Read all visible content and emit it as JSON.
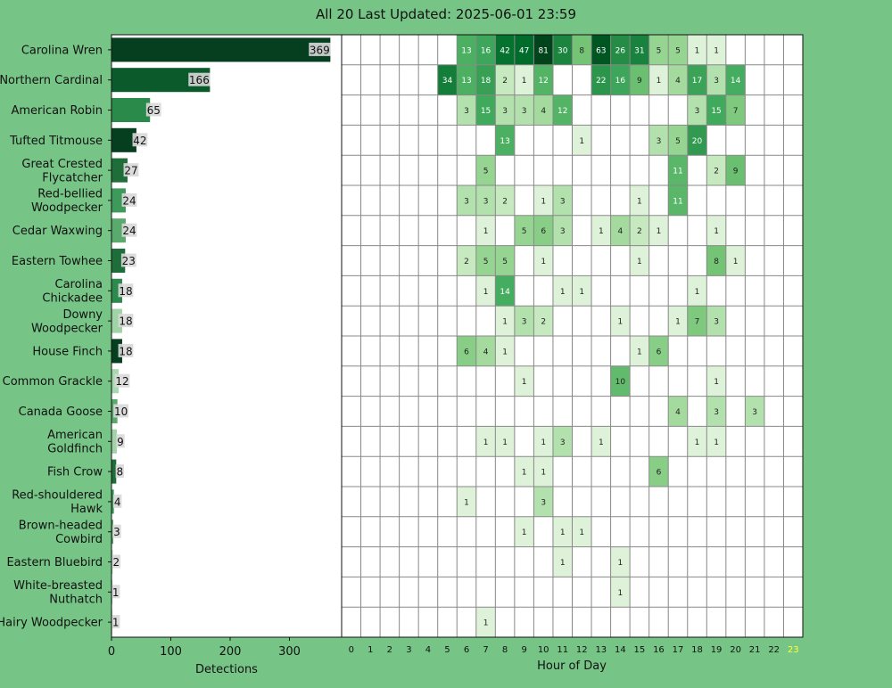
{
  "title": "All 20 Last Updated: 2025-06-01 23:59",
  "colors": {
    "background": "#77c586",
    "bar_dark": "#063f1f",
    "grid_line": "#888888",
    "highlight_hour": "#ffff33"
  },
  "chart_data": [
    {
      "type": "bar",
      "orientation": "horizontal",
      "xlabel": "Detections",
      "xlim": [
        0,
        388
      ],
      "xticks": [
        "0",
        "100",
        "200",
        "300"
      ],
      "categories": [
        "Carolina Wren",
        "Northern Cardinal",
        "American Robin",
        "Tufted Titmouse",
        "Great Crested\nFlycatcher",
        "Red-bellied\nWoodpecker",
        "Cedar Waxwing",
        "Eastern Towhee",
        "Carolina\nChickadee",
        "Downy\nWoodpecker",
        "House Finch",
        "Common Grackle",
        "Canada Goose",
        "American\nGoldfinch",
        "Fish Crow",
        "Red-shouldered\nHawk",
        "Brown-headed\nCowbird",
        "Eastern Bluebird",
        "White-breasted\nNuthatch",
        "Hairy Woodpecker"
      ],
      "values": [
        369,
        166,
        65,
        42,
        27,
        24,
        24,
        23,
        18,
        18,
        18,
        12,
        10,
        9,
        8,
        4,
        3,
        2,
        1,
        1
      ],
      "value_labels": [
        "369",
        "166",
        "65",
        "42",
        "27",
        "24",
        "24",
        "23",
        "18",
        "18",
        "18",
        "12",
        "10",
        "9",
        "8",
        "4",
        "3",
        "2",
        "1",
        "1"
      ],
      "bar_colors": [
        "#063f1f",
        "#0a5a2c",
        "#2a8a4a",
        "#063f1f",
        "#1f6e3a",
        "#3e9a5a",
        "#5aaa6e",
        "#1f6e3a",
        "#2d8a4d",
        "#a0d4a6",
        "#063f1f",
        "#a8d8ae",
        "#5aaa6e",
        "#a0d4a6",
        "#1f6e3a",
        "#3e9a5a",
        "#5aaa6e",
        "#a8d8ae",
        "#5aaa6e",
        "#a8d8ae"
      ]
    },
    {
      "type": "heatmap",
      "xlabel": "Hour of Day",
      "x": [
        "0",
        "1",
        "2",
        "3",
        "4",
        "5",
        "6",
        "7",
        "8",
        "9",
        "10",
        "11",
        "12",
        "13",
        "14",
        "15",
        "16",
        "17",
        "18",
        "19",
        "20",
        "21",
        "22",
        "23"
      ],
      "highlighted_hour": "23",
      "grid": true,
      "rows": [
        [
          null,
          null,
          null,
          null,
          null,
          null,
          13,
          16,
          42,
          47,
          81,
          30,
          8,
          63,
          26,
          31,
          5,
          5,
          1,
          1,
          null,
          null,
          null,
          null
        ],
        [
          null,
          null,
          null,
          null,
          null,
          34,
          13,
          18,
          2,
          1,
          12,
          null,
          null,
          22,
          16,
          9,
          1,
          4,
          17,
          3,
          14,
          null,
          null,
          null
        ],
        [
          null,
          null,
          null,
          null,
          null,
          null,
          3,
          15,
          3,
          3,
          4,
          12,
          null,
          null,
          null,
          null,
          null,
          null,
          3,
          15,
          7,
          null,
          null,
          null
        ],
        [
          null,
          null,
          null,
          null,
          null,
          null,
          null,
          null,
          13,
          null,
          null,
          null,
          1,
          null,
          null,
          null,
          3,
          5,
          20,
          null,
          null,
          null,
          null,
          null
        ],
        [
          null,
          null,
          null,
          null,
          null,
          null,
          null,
          5,
          null,
          null,
          null,
          null,
          null,
          null,
          null,
          null,
          null,
          11,
          null,
          2,
          9,
          null,
          null,
          null
        ],
        [
          null,
          null,
          null,
          null,
          null,
          null,
          3,
          3,
          2,
          null,
          1,
          3,
          null,
          null,
          null,
          1,
          null,
          11,
          null,
          null,
          null,
          null,
          null,
          null
        ],
        [
          null,
          null,
          null,
          null,
          null,
          null,
          null,
          1,
          null,
          5,
          6,
          3,
          null,
          1,
          4,
          2,
          1,
          null,
          null,
          1,
          null,
          null,
          null,
          null
        ],
        [
          null,
          null,
          null,
          null,
          null,
          null,
          2,
          5,
          5,
          null,
          1,
          null,
          null,
          null,
          null,
          1,
          null,
          null,
          null,
          8,
          1,
          null,
          null,
          null
        ],
        [
          null,
          null,
          null,
          null,
          null,
          null,
          null,
          1,
          14,
          null,
          null,
          1,
          1,
          null,
          null,
          null,
          null,
          null,
          1,
          null,
          null,
          null,
          null,
          null
        ],
        [
          null,
          null,
          null,
          null,
          null,
          null,
          null,
          null,
          1,
          3,
          2,
          null,
          null,
          null,
          1,
          null,
          null,
          1,
          7,
          3,
          null,
          null,
          null,
          null
        ],
        [
          null,
          null,
          null,
          null,
          null,
          null,
          6,
          4,
          1,
          null,
          null,
          null,
          null,
          null,
          null,
          1,
          6,
          null,
          null,
          null,
          null,
          null,
          null,
          null
        ],
        [
          null,
          null,
          null,
          null,
          null,
          null,
          null,
          null,
          null,
          1,
          null,
          null,
          null,
          null,
          10,
          null,
          null,
          null,
          null,
          1,
          null,
          null,
          null,
          null
        ],
        [
          null,
          null,
          null,
          null,
          null,
          null,
          null,
          null,
          null,
          null,
          null,
          null,
          null,
          null,
          null,
          null,
          null,
          4,
          null,
          3,
          null,
          3,
          null,
          null
        ],
        [
          null,
          null,
          null,
          null,
          null,
          null,
          null,
          1,
          1,
          null,
          1,
          3,
          null,
          1,
          null,
          null,
          null,
          null,
          1,
          1,
          null,
          null,
          null,
          null
        ],
        [
          null,
          null,
          null,
          null,
          null,
          null,
          null,
          null,
          null,
          1,
          1,
          null,
          null,
          null,
          null,
          null,
          6,
          null,
          null,
          null,
          null,
          null,
          null,
          null
        ],
        [
          null,
          null,
          null,
          null,
          null,
          null,
          1,
          null,
          null,
          null,
          3,
          null,
          null,
          null,
          null,
          null,
          null,
          null,
          null,
          null,
          null,
          null,
          null,
          null
        ],
        [
          null,
          null,
          null,
          null,
          null,
          null,
          null,
          null,
          null,
          1,
          null,
          1,
          1,
          null,
          null,
          null,
          null,
          null,
          null,
          null,
          null,
          null,
          null,
          null
        ],
        [
          null,
          null,
          null,
          null,
          null,
          null,
          null,
          null,
          null,
          null,
          null,
          1,
          null,
          null,
          1,
          null,
          null,
          null,
          null,
          null,
          null,
          null,
          null,
          null
        ],
        [
          null,
          null,
          null,
          null,
          null,
          null,
          null,
          null,
          null,
          null,
          null,
          null,
          null,
          null,
          1,
          null,
          null,
          null,
          null,
          null,
          null,
          null,
          null,
          null
        ],
        [
          null,
          null,
          null,
          null,
          null,
          null,
          null,
          1,
          null,
          null,
          null,
          null,
          null,
          null,
          null,
          null,
          null,
          null,
          null,
          null,
          null,
          null,
          null,
          null
        ]
      ]
    }
  ]
}
